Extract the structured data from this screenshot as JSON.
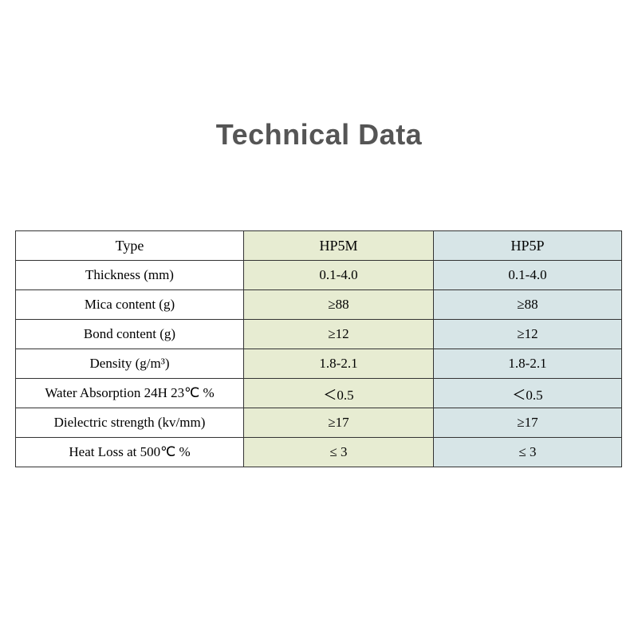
{
  "title": "Technical Data",
  "table": {
    "border_color": "#333333",
    "background_color": "#ffffff",
    "col_b_color": "#e7ecd2",
    "col_c_color": "#d7e5e7",
    "label_fontsize": 17,
    "title_fontsize": 36,
    "title_color": "#555555",
    "columns": [
      "Type",
      "HP5M",
      "HP5P"
    ],
    "rows": [
      {
        "label": "Thickness (mm)",
        "b": "0.1-4.0",
        "c": "0.1-4.0"
      },
      {
        "label": "Mica content (g)",
        "b": "≥88",
        "c": "≥88"
      },
      {
        "label": "Bond content (g)",
        "b": "≥12",
        "c": "≥12"
      },
      {
        "label": "Density (g/m³)",
        "b": "1.8-2.1",
        "c": "1.8-2.1"
      },
      {
        "label": "Water Absorption 24H 23℃ %",
        "b": "＜0.5",
        "c": "＜0.5"
      },
      {
        "label": "Dielectric strength (kv/mm)",
        "b": "≥17",
        "c": "≥17"
      },
      {
        "label": "Heat Loss at 500℃ %",
        "b": "≤ 3",
        "c": "≤ 3"
      }
    ]
  }
}
